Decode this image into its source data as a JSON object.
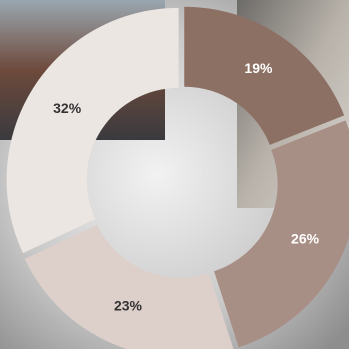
{
  "chart_data": {
    "type": "donut",
    "categories": [
      null,
      null,
      null,
      null
    ],
    "values": [
      19,
      26,
      23,
      32
    ],
    "value_labels": [
      "19%",
      "26%",
      "23%",
      "32%"
    ],
    "colors": [
      "#8d7064",
      "#a88f85",
      "#ddd0cb",
      "#ece6e3"
    ]
  }
}
